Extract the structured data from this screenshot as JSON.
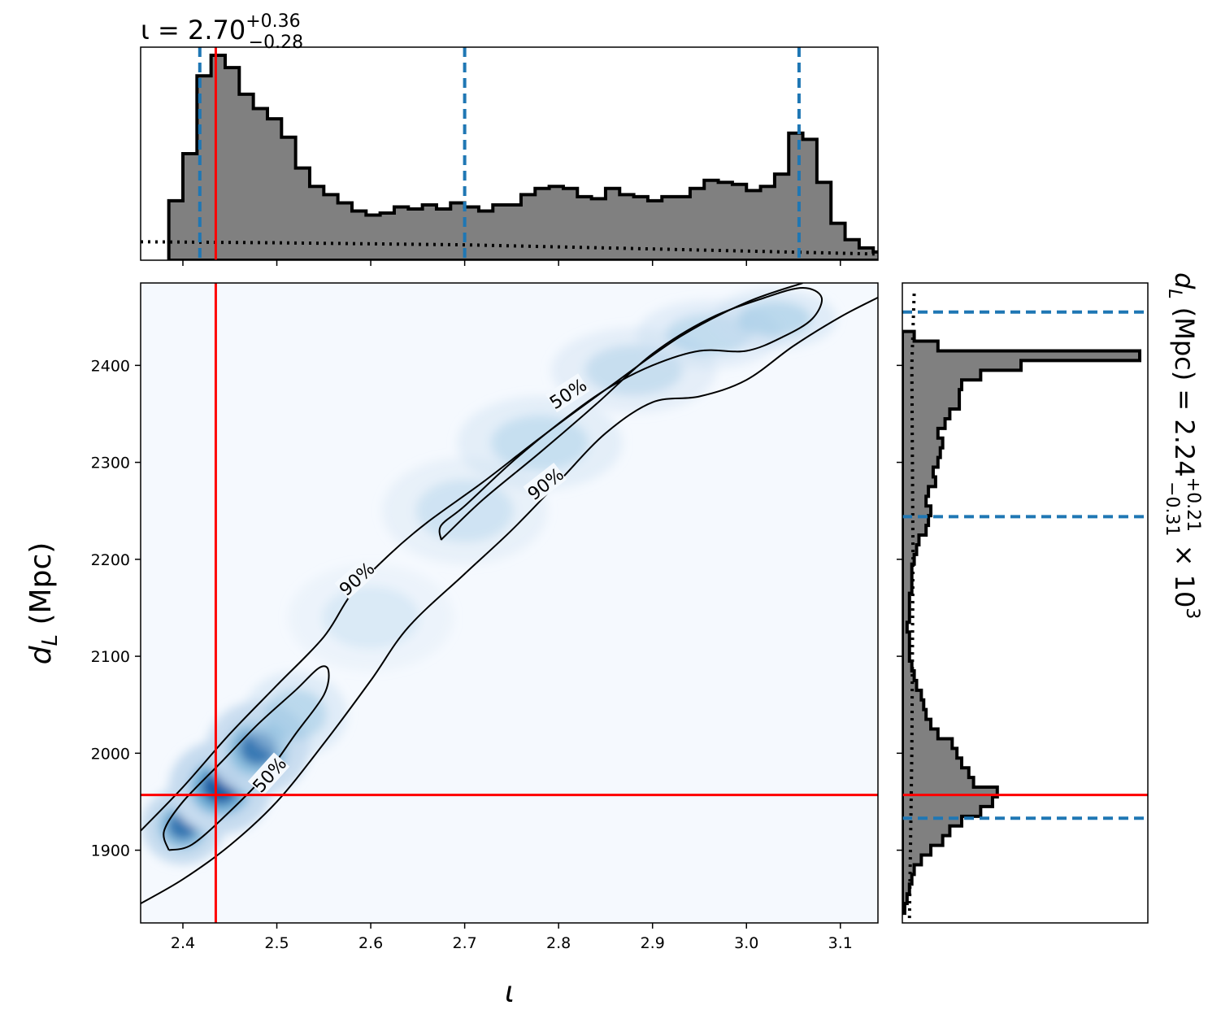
{
  "colors": {
    "hist_fill": "#808080",
    "hist_edge": "#000000",
    "quantile": "#1f77b4",
    "truth": "#ff0000",
    "density": "#08519c",
    "contour": "#000000",
    "background": "#ffffff"
  },
  "titles": {
    "top_prefix": "ι = 2.70",
    "top_sup": "+0.36",
    "top_sub": "−0.28",
    "right_prefix": "d",
    "right_prefix_sub": "L",
    "right_middle": " (Mpc) = 2.24",
    "right_sup": "+0.21",
    "right_sub": "−0.31",
    "right_suffix": " × 10",
    "right_exp": "3"
  },
  "chart_data": [
    {
      "type": "heatmap",
      "panel": "joint",
      "xlabel": "ι",
      "ylabel": "d",
      "ylabel_sub": "L",
      "ylabel_unit": " (Mpc)",
      "xlim": [
        2.355,
        3.14
      ],
      "ylim": [
        1825,
        2485
      ],
      "xticks": [
        2.4,
        2.5,
        2.6,
        2.7,
        2.8,
        2.9,
        3.0,
        3.1
      ],
      "xtick_labels": [
        "2.4",
        "2.5",
        "2.6",
        "2.7",
        "2.8",
        "2.9",
        "3.0",
        "3.1"
      ],
      "yticks": [
        1900,
        2000,
        2100,
        2200,
        2300,
        2400
      ],
      "ytick_labels": [
        "1900",
        "2000",
        "2100",
        "2200",
        "2300",
        "2400"
      ],
      "truth": {
        "x": 2.435,
        "y": 1957
      },
      "contours": [
        {
          "level": "90%",
          "paths": [
            [
              [
                2.355,
                1920
              ],
              [
                2.4,
                1965
              ],
              [
                2.45,
                2020
              ],
              [
                2.5,
                2070
              ],
              [
                2.55,
                2120
              ],
              [
                2.58,
                2165
              ],
              [
                2.62,
                2205
              ],
              [
                2.66,
                2238
              ],
              [
                2.72,
                2280
              ],
              [
                2.78,
                2325
              ],
              [
                2.85,
                2375
              ],
              [
                2.93,
                2430
              ],
              [
                3.0,
                2465
              ],
              [
                3.06,
                2485
              ]
            ],
            [
              [
                2.355,
                1845
              ],
              [
                2.4,
                1870
              ],
              [
                2.45,
                1905
              ],
              [
                2.5,
                1950
              ],
              [
                2.55,
                2010
              ],
              [
                2.6,
                2075
              ],
              [
                2.64,
                2130
              ],
              [
                2.7,
                2185
              ],
              [
                2.75,
                2230
              ],
              [
                2.8,
                2280
              ],
              [
                2.85,
                2330
              ],
              [
                2.9,
                2362
              ],
              [
                2.95,
                2368
              ],
              [
                3.0,
                2385
              ],
              [
                3.05,
                2420
              ],
              [
                3.1,
                2450
              ],
              [
                3.14,
                2470
              ]
            ]
          ]
        },
        {
          "level": "50%",
          "paths": [
            [
              [
                2.385,
                1900
              ],
              [
                2.38,
                1920
              ],
              [
                2.4,
                1950
              ],
              [
                2.44,
                1990
              ],
              [
                2.48,
                2030
              ],
              [
                2.52,
                2065
              ],
              [
                2.545,
                2088
              ],
              [
                2.555,
                2085
              ],
              [
                2.55,
                2060
              ],
              [
                2.52,
                2020
              ],
              [
                2.49,
                1980
              ],
              [
                2.45,
                1940
              ],
              [
                2.41,
                1906
              ],
              [
                2.385,
                1900
              ]
            ],
            [
              [
                2.675,
                2220
              ],
              [
                2.68,
                2225
              ],
              [
                2.72,
                2262
              ],
              [
                2.78,
                2310
              ],
              [
                2.84,
                2360
              ],
              [
                2.9,
                2412
              ],
              [
                2.96,
                2448
              ],
              [
                3.02,
                2470
              ],
              [
                3.06,
                2480
              ],
              [
                3.08,
                2470
              ],
              [
                3.07,
                2448
              ],
              [
                3.04,
                2430
              ],
              [
                3.0,
                2415
              ],
              [
                2.95,
                2415
              ],
              [
                2.9,
                2400
              ],
              [
                2.85,
                2375
              ],
              [
                2.8,
                2340
              ],
              [
                2.75,
                2300
              ],
              [
                2.7,
                2255
              ],
              [
                2.675,
                2235
              ],
              [
                2.675,
                2220
              ]
            ]
          ]
        }
      ],
      "contour_labels": [
        {
          "text": "90%",
          "x": 2.585,
          "y": 2180,
          "angle": -42
        },
        {
          "text": "50%",
          "x": 2.81,
          "y": 2371,
          "angle": -33
        },
        {
          "text": "90%",
          "x": 2.786,
          "y": 2278,
          "angle": -38
        },
        {
          "text": "50%",
          "x": 2.492,
          "y": 1978,
          "angle": -48
        }
      ],
      "density_ridge": [
        {
          "x": 2.4,
          "y": 1925,
          "sx": 0.02,
          "sy": 18,
          "w": 0.75
        },
        {
          "x": 2.44,
          "y": 1965,
          "sx": 0.025,
          "sy": 22,
          "w": 1.0
        },
        {
          "x": 2.48,
          "y": 2005,
          "sx": 0.025,
          "sy": 22,
          "w": 0.7
        },
        {
          "x": 2.52,
          "y": 2040,
          "sx": 0.025,
          "sy": 20,
          "w": 0.35
        },
        {
          "x": 2.6,
          "y": 2140,
          "sx": 0.04,
          "sy": 25,
          "w": 0.15
        },
        {
          "x": 2.7,
          "y": 2250,
          "sx": 0.04,
          "sy": 25,
          "w": 0.22
        },
        {
          "x": 2.78,
          "y": 2320,
          "sx": 0.04,
          "sy": 22,
          "w": 0.28
        },
        {
          "x": 2.88,
          "y": 2395,
          "sx": 0.04,
          "sy": 20,
          "w": 0.27
        },
        {
          "x": 2.96,
          "y": 2432,
          "sx": 0.035,
          "sy": 16,
          "w": 0.3
        },
        {
          "x": 3.03,
          "y": 2448,
          "sx": 0.03,
          "sy": 14,
          "w": 0.35
        }
      ]
    },
    {
      "type": "bar",
      "panel": "top_marginal",
      "xlim": [
        2.355,
        3.14
      ],
      "bins_start": 2.385,
      "bin_width": 0.015,
      "values": [
        0.29,
        0.52,
        0.9,
        1.0,
        0.94,
        0.81,
        0.74,
        0.69,
        0.6,
        0.45,
        0.36,
        0.32,
        0.28,
        0.24,
        0.22,
        0.23,
        0.26,
        0.25,
        0.27,
        0.25,
        0.28,
        0.26,
        0.24,
        0.27,
        0.27,
        0.32,
        0.35,
        0.36,
        0.35,
        0.31,
        0.3,
        0.35,
        0.32,
        0.31,
        0.29,
        0.31,
        0.31,
        0.35,
        0.39,
        0.38,
        0.37,
        0.34,
        0.36,
        0.42,
        0.62,
        0.59,
        0.38,
        0.18,
        0.1,
        0.06,
        0.04
      ],
      "prior": [
        [
          2.355,
          0.09
        ],
        [
          2.5,
          0.085
        ],
        [
          2.7,
          0.075
        ],
        [
          2.9,
          0.055
        ],
        [
          3.14,
          0.03
        ]
      ],
      "quantiles": [
        2.418,
        2.7,
        3.056
      ],
      "truth": 2.435,
      "xticks": [
        2.4,
        2.5,
        2.6,
        2.7,
        2.8,
        2.9,
        3.0,
        3.1
      ]
    },
    {
      "type": "bar",
      "panel": "right_marginal",
      "ylim": [
        1825,
        2485
      ],
      "bins_start": 1835,
      "bin_width": 10,
      "values": [
        0.01,
        0.02,
        0.03,
        0.04,
        0.05,
        0.08,
        0.12,
        0.17,
        0.2,
        0.25,
        0.33,
        0.38,
        0.4,
        0.3,
        0.28,
        0.25,
        0.23,
        0.21,
        0.15,
        0.12,
        0.1,
        0.09,
        0.08,
        0.06,
        0.05,
        0.04,
        0.03,
        0.03,
        0.03,
        0.02,
        0.03,
        0.03,
        0.03,
        0.04,
        0.04,
        0.04,
        0.05,
        0.06,
        0.07,
        0.1,
        0.11,
        0.12,
        0.1,
        0.11,
        0.14,
        0.13,
        0.15,
        0.16,
        0.17,
        0.15,
        0.18,
        0.2,
        0.24,
        0.24,
        0.25,
        0.33,
        0.5,
        1.0,
        0.15,
        0.05
      ],
      "prior": [
        [
          1830,
          0.03
        ],
        [
          2000,
          0.04
        ],
        [
          2200,
          0.045
        ],
        [
          2400,
          0.04
        ],
        [
          2475,
          0.05
        ]
      ],
      "quantiles": [
        1933,
        2244,
        2455
      ],
      "truth": 1957,
      "yticks": [
        1900,
        2000,
        2100,
        2200,
        2300,
        2400
      ]
    }
  ]
}
